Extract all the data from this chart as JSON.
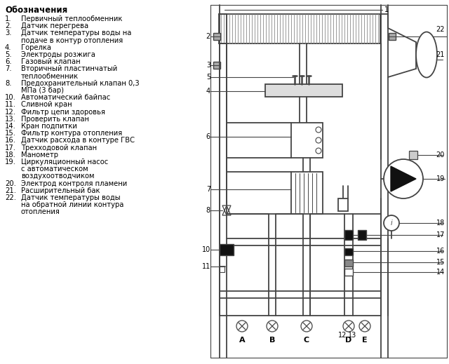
{
  "bg_color": "#ffffff",
  "legend_title": "Обозначения",
  "legend_items": [
    [
      "1.",
      "Первичный теплообменник"
    ],
    [
      "2.",
      "Датчик перегрева"
    ],
    [
      "3.",
      "Датчик температуры воды на"
    ],
    [
      "",
      "подаче в контур отопления"
    ],
    [
      "4.",
      "Горелка"
    ],
    [
      "5.",
      "Электроды розжига"
    ],
    [
      "6.",
      "Газовый клапан"
    ],
    [
      "7.",
      "Вторичный пластинчатый"
    ],
    [
      "",
      "теплообменник"
    ],
    [
      "8.",
      "Предохранительный клапан 0,3"
    ],
    [
      "",
      "МПа (3 бар)"
    ],
    [
      "10.",
      "Автоматический байпас"
    ],
    [
      "11.",
      "Сливной кран"
    ],
    [
      "12.",
      "Фильтр цепи здоровья"
    ],
    [
      "13.",
      "Проверить клапан"
    ],
    [
      "14.",
      "Кран подпитки"
    ],
    [
      "15.",
      "Фильтр контура отопления"
    ],
    [
      "16.",
      "Датчик расхода в контуре ГВС"
    ],
    [
      "17.",
      "Трехходовой клапан"
    ],
    [
      "18.",
      "Манометр"
    ],
    [
      "19.",
      "Циркуляционный насос"
    ],
    [
      "",
      "с автоматическом"
    ],
    [
      "",
      "воздухоотводчиком"
    ],
    [
      "20.",
      "Электрод контроля пламени"
    ],
    [
      "21.",
      "Расширительный бак"
    ],
    [
      "22.",
      "Датчик температуры воды"
    ],
    [
      "",
      "на обратной линии контура"
    ],
    [
      "",
      "отопления"
    ]
  ],
  "line_color": "#888888",
  "dark_color": "#444444",
  "label_color": "#000000",
  "font_size": 7.2,
  "title_font_size": 8.5
}
